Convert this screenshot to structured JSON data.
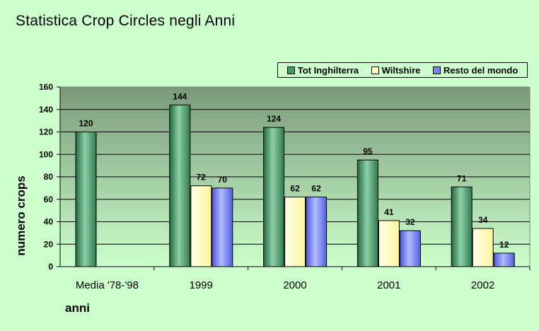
{
  "chart_data": {
    "type": "bar",
    "title": "Statistica Crop Circles negli Anni",
    "xlabel": "anni",
    "ylabel": "numero crops",
    "ylim": [
      0,
      160
    ],
    "yticks": [
      "0",
      "20",
      "40",
      "60",
      "80",
      "100",
      "120",
      "140",
      "160"
    ],
    "categories": [
      "Media '78-'98",
      "1999",
      "2000",
      "2001",
      "2002"
    ],
    "series": [
      {
        "name": "Tot Inghilterra",
        "color": "#3f9a6a",
        "values": [
          120,
          144,
          124,
          95,
          71
        ]
      },
      {
        "name": "Wiltshire",
        "color": "#ffffc0",
        "values": [
          null,
          72,
          62,
          41,
          34
        ]
      },
      {
        "name": "Resto del mondo",
        "color": "#7a86f0",
        "values": [
          null,
          70,
          62,
          32,
          12
        ]
      }
    ],
    "legend_position": "top-right",
    "grid": true
  }
}
